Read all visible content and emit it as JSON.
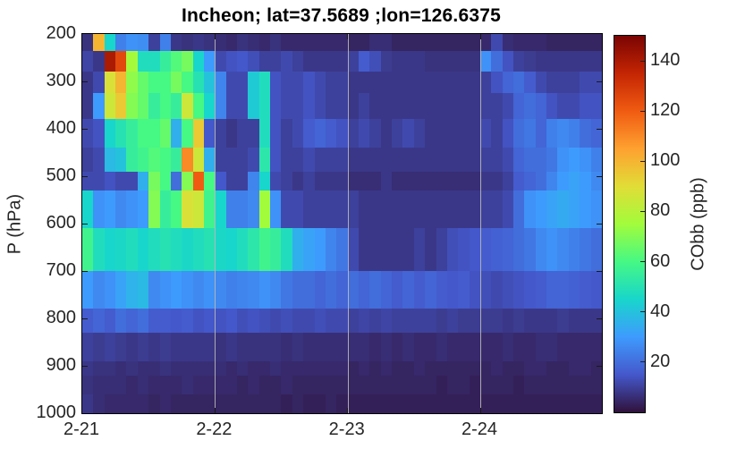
{
  "figure": {
    "title": "Incheon; lat=37.5689 ;lon=126.6375"
  },
  "chart_data": {
    "type": "heatmap",
    "title": "Incheon; lat=37.5689 ;lon=126.6375",
    "xlabel": "",
    "ylabel": "P (hPa)",
    "colorbar_label": "CObb (ppb)",
    "value_units": "ppb",
    "value_range": [
      0,
      150
    ],
    "colorbar_ticks": [
      20,
      40,
      60,
      80,
      100,
      120,
      140
    ],
    "y_range": [
      200,
      1000
    ],
    "y_ticks": [
      200,
      300,
      400,
      500,
      600,
      700,
      800,
      900,
      1000
    ],
    "x_ticks": [
      {
        "label": "2-21",
        "hour": 0
      },
      {
        "label": "2-22",
        "hour": 24
      },
      {
        "label": "2-23",
        "hour": 48
      },
      {
        "label": "2-24",
        "hour": 72
      }
    ],
    "grid_hours": [
      24,
      48,
      72
    ],
    "total_hours": 94,
    "time_step_hours": 2,
    "grid_on": true,
    "pressure_bounds": [
      200,
      235,
      280,
      325,
      380,
      440,
      490,
      530,
      610,
      700,
      780,
      830,
      890,
      920,
      960,
      1000
    ],
    "values": [
      [
        7,
        100,
        45,
        24,
        28,
        27,
        10,
        24,
        8,
        7,
        8,
        7,
        6,
        5,
        7,
        6,
        5,
        7,
        5,
        5,
        5,
        5,
        5,
        5,
        4,
        4,
        6,
        6,
        4,
        4,
        4,
        4,
        4,
        4,
        4,
        4,
        5,
        12,
        6,
        5,
        5,
        5,
        4,
        4,
        4,
        4,
        4
      ],
      [
        11,
        8,
        140,
        125,
        76,
        48,
        48,
        55,
        62,
        68,
        45,
        30,
        12,
        14,
        15,
        13,
        10,
        10,
        12,
        10,
        8,
        8,
        8,
        8,
        10,
        16,
        13,
        9,
        8,
        8,
        8,
        7,
        7,
        7,
        7,
        7,
        28,
        20,
        14,
        10,
        9,
        8,
        8,
        8,
        8,
        8,
        8
      ],
      [
        8,
        12,
        88,
        100,
        72,
        65,
        60,
        60,
        68,
        60,
        50,
        40,
        25,
        12,
        12,
        42,
        48,
        14,
        12,
        12,
        14,
        12,
        10,
        10,
        8,
        8,
        8,
        8,
        8,
        8,
        8,
        8,
        8,
        8,
        8,
        8,
        10,
        14,
        18,
        20,
        16,
        12,
        10,
        10,
        10,
        12,
        12
      ],
      [
        8,
        30,
        85,
        95,
        70,
        65,
        55,
        60,
        55,
        85,
        60,
        45,
        25,
        12,
        12,
        42,
        48,
        14,
        12,
        12,
        14,
        12,
        10,
        10,
        8,
        10,
        8,
        8,
        8,
        8,
        8,
        8,
        8,
        8,
        8,
        8,
        10,
        10,
        12,
        18,
        20,
        18,
        14,
        12,
        12,
        14,
        14
      ],
      [
        12,
        14,
        45,
        50,
        55,
        60,
        60,
        65,
        35,
        60,
        95,
        15,
        10,
        8,
        10,
        10,
        48,
        14,
        10,
        12,
        16,
        18,
        16,
        14,
        10,
        12,
        10,
        8,
        10,
        12,
        10,
        8,
        8,
        8,
        8,
        8,
        12,
        10,
        14,
        20,
        22,
        18,
        24,
        26,
        24,
        20,
        18
      ],
      [
        10,
        12,
        38,
        40,
        55,
        58,
        62,
        60,
        55,
        110,
        85,
        35,
        10,
        10,
        10,
        12,
        52,
        14,
        10,
        10,
        12,
        10,
        10,
        10,
        8,
        8,
        8,
        8,
        8,
        8,
        8,
        8,
        8,
        8,
        8,
        8,
        10,
        10,
        12,
        18,
        20,
        20,
        22,
        28,
        30,
        28,
        24
      ],
      [
        12,
        12,
        14,
        12,
        12,
        35,
        68,
        60,
        20,
        70,
        120,
        60,
        15,
        10,
        10,
        25,
        45,
        12,
        10,
        8,
        10,
        8,
        8,
        8,
        6,
        6,
        6,
        8,
        6,
        6,
        6,
        6,
        6,
        6,
        6,
        6,
        8,
        8,
        10,
        16,
        18,
        20,
        25,
        30,
        32,
        30,
        26
      ],
      [
        45,
        28,
        30,
        26,
        28,
        30,
        70,
        55,
        60,
        88,
        85,
        58,
        45,
        24,
        24,
        26,
        75,
        28,
        12,
        12,
        10,
        10,
        10,
        10,
        10,
        8,
        8,
        8,
        8,
        8,
        8,
        8,
        8,
        8,
        8,
        8,
        10,
        10,
        12,
        20,
        28,
        30,
        32,
        34,
        32,
        30,
        28
      ],
      [
        58,
        48,
        45,
        46,
        48,
        45,
        48,
        50,
        48,
        46,
        48,
        50,
        46,
        45,
        48,
        52,
        58,
        55,
        48,
        35,
        32,
        30,
        25,
        22,
        12,
        8,
        8,
        8,
        8,
        8,
        10,
        8,
        10,
        13,
        14,
        15,
        16,
        17,
        18,
        20,
        22,
        26,
        28,
        26,
        24,
        22,
        20
      ],
      [
        30,
        26,
        28,
        32,
        36,
        38,
        26,
        28,
        30,
        28,
        26,
        28,
        26,
        24,
        25,
        26,
        28,
        26,
        22,
        20,
        20,
        18,
        20,
        18,
        20,
        18,
        20,
        18,
        16,
        18,
        16,
        18,
        16,
        15,
        16,
        14,
        13,
        12,
        13,
        14,
        15,
        16,
        18,
        18,
        17,
        16,
        15
      ],
      [
        16,
        18,
        16,
        20,
        18,
        20,
        16,
        16,
        15,
        16,
        14,
        15,
        14,
        15,
        13,
        14,
        13,
        12,
        13,
        12,
        12,
        13,
        12,
        12,
        10,
        11,
        10,
        11,
        10,
        10,
        10,
        10,
        9,
        10,
        9,
        9,
        9,
        9,
        8,
        9,
        8,
        8,
        8,
        9,
        8,
        8,
        8
      ],
      [
        10,
        9,
        10,
        9,
        8,
        9,
        8,
        9,
        8,
        8,
        8,
        8,
        7,
        8,
        7,
        7,
        7,
        7,
        6,
        7,
        6,
        6,
        6,
        6,
        6,
        6,
        5,
        6,
        5,
        6,
        5,
        5,
        6,
        5,
        5,
        5,
        5,
        5,
        6,
        5,
        5,
        6,
        6,
        5,
        5,
        5,
        5
      ],
      [
        8,
        7,
        7,
        6,
        7,
        6,
        6,
        7,
        6,
        6,
        6,
        6,
        6,
        5,
        6,
        5,
        5,
        6,
        5,
        5,
        5,
        5,
        5,
        5,
        4,
        5,
        4,
        5,
        4,
        4,
        5,
        4,
        4,
        4,
        4,
        4,
        4,
        5,
        4,
        4,
        5,
        5,
        4,
        4,
        5,
        5,
        4
      ],
      [
        7,
        6,
        6,
        6,
        5,
        6,
        5,
        5,
        5,
        6,
        5,
        5,
        5,
        5,
        4,
        5,
        4,
        4,
        5,
        4,
        4,
        4,
        4,
        4,
        4,
        4,
        4,
        4,
        4,
        4,
        4,
        4,
        3,
        4,
        4,
        3,
        4,
        4,
        4,
        3,
        4,
        4,
        4,
        4,
        4,
        4,
        4
      ],
      [
        8,
        6,
        5,
        5,
        5,
        5,
        4,
        5,
        4,
        4,
        4,
        4,
        4,
        4,
        4,
        4,
        4,
        4,
        3,
        4,
        3,
        3,
        4,
        3,
        3,
        3,
        3,
        3,
        3,
        3,
        3,
        3,
        3,
        3,
        3,
        3,
        3,
        3,
        3,
        3,
        3,
        3,
        3,
        3,
        3,
        3,
        3
      ]
    ],
    "colormap": {
      "name": "turbo",
      "anchors": [
        {
          "t": 0.0,
          "color": "#30123b"
        },
        {
          "t": 0.1,
          "color": "#4458cb"
        },
        {
          "t": 0.2,
          "color": "#3e9bfe"
        },
        {
          "t": 0.3,
          "color": "#18d6cb"
        },
        {
          "t": 0.4,
          "color": "#46f884"
        },
        {
          "t": 0.5,
          "color": "#a2fc3c"
        },
        {
          "t": 0.6,
          "color": "#e1dd37"
        },
        {
          "t": 0.7,
          "color": "#fea130"
        },
        {
          "t": 0.8,
          "color": "#f05b12"
        },
        {
          "t": 0.9,
          "color": "#c42503"
        },
        {
          "t": 1.0,
          "color": "#7a0403"
        }
      ]
    },
    "gridline_color": "#bbbbbb",
    "axis_text_color": "#262626"
  }
}
